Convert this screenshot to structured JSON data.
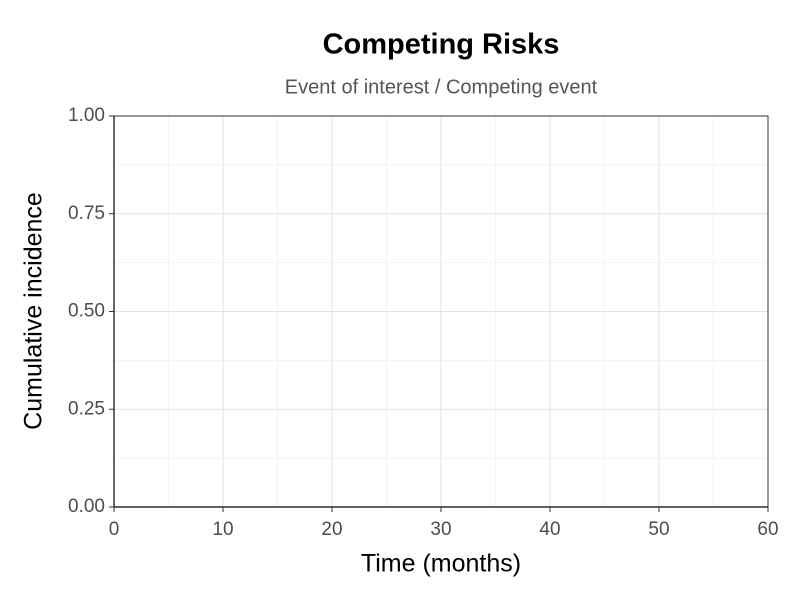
{
  "chart_data": {
    "type": "line",
    "title": "Competing Risks",
    "subtitle": "Event of interest / Competing event",
    "xlabel": "Time (months)",
    "ylabel": "Cumulative incidence",
    "xlim": [
      0,
      60
    ],
    "xticks": [
      0,
      10,
      20,
      30,
      40,
      50,
      60
    ],
    "ylim": [
      0,
      1
    ],
    "yticks": [
      {
        "value": 0,
        "label": "0.00"
      },
      {
        "value": 0.25,
        "label": "0.25"
      },
      {
        "value": 0.5,
        "label": "0.50"
      },
      {
        "value": 0.75,
        "label": "0.75"
      },
      {
        "value": 1,
        "label": "1.00"
      }
    ],
    "grid": true
  }
}
